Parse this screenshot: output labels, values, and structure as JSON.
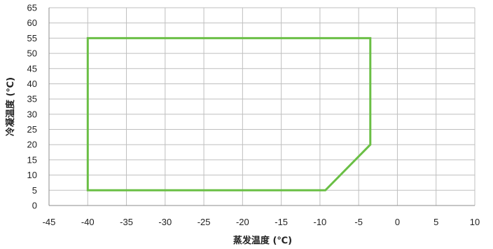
{
  "chart_data": {
    "type": "line",
    "title": "",
    "xlabel": "蒸发温度 (℃)",
    "ylabel": "冷凝温度 (℃)",
    "xlim": [
      -45,
      10
    ],
    "ylim": [
      0,
      65
    ],
    "x_ticks": [
      -45,
      -40,
      -35,
      -30,
      -25,
      -20,
      -15,
      -10,
      -5,
      0,
      5,
      10
    ],
    "y_ticks": [
      0,
      5,
      10,
      15,
      20,
      25,
      30,
      35,
      40,
      45,
      50,
      55,
      60,
      65
    ],
    "grid": true,
    "legend": "none",
    "series": [
      {
        "color": "#6abf45",
        "closed": true,
        "points": [
          [
            -40,
            5
          ],
          [
            -40,
            55
          ],
          [
            -3.5,
            55
          ],
          [
            -3.5,
            20
          ],
          [
            -9.3,
            5
          ]
        ]
      }
    ]
  }
}
